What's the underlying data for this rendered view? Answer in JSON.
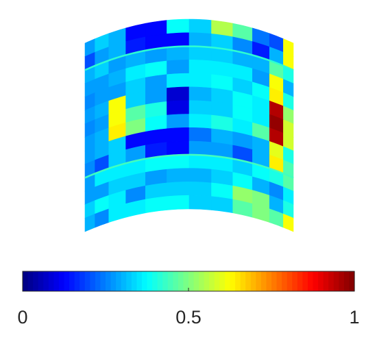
{
  "chart_data": {
    "type": "heatmap",
    "colormap": "jet",
    "value_range": [
      0,
      1
    ],
    "grid": false,
    "legend_placement": "bottom",
    "colorbar": {
      "ticks": [
        0,
        0.5,
        1
      ],
      "tick_labels": [
        "0",
        "0.5",
        "1"
      ]
    },
    "rows": [
      [
        0.28,
        0.33,
        0.3,
        0.13,
        0.13,
        0.38,
        0.33,
        0.55,
        0.46,
        0.24,
        0.2,
        0.62
      ],
      [
        0.2,
        0.28,
        0.3,
        0.15,
        0.13,
        0.13,
        0.3,
        0.33,
        0.26,
        0.15,
        0.3,
        0.62
      ],
      [
        0.3,
        0.33,
        0.28,
        0.3,
        0.28,
        0.3,
        0.33,
        0.33,
        0.3,
        0.3,
        0.46,
        0.4
      ],
      [
        0.28,
        0.28,
        0.3,
        0.36,
        0.38,
        0.28,
        0.36,
        0.36,
        0.36,
        0.28,
        0.62,
        0.3
      ],
      [
        0.26,
        0.28,
        0.28,
        0.33,
        0.28,
        0.36,
        0.36,
        0.38,
        0.33,
        0.38,
        0.64,
        0.4
      ],
      [
        0.28,
        0.3,
        0.62,
        0.33,
        0.28,
        0.08,
        0.3,
        0.33,
        0.38,
        0.36,
        0.95,
        0.52
      ],
      [
        0.26,
        0.28,
        0.62,
        0.46,
        0.4,
        0.1,
        0.33,
        0.33,
        0.38,
        0.36,
        0.98,
        0.58
      ],
      [
        0.28,
        0.3,
        0.64,
        0.5,
        0.38,
        0.28,
        0.36,
        0.4,
        0.36,
        0.46,
        0.95,
        0.58
      ],
      [
        0.28,
        0.3,
        0.33,
        0.13,
        0.13,
        0.13,
        0.24,
        0.3,
        0.28,
        0.3,
        0.6,
        0.4
      ],
      [
        0.26,
        0.2,
        0.33,
        0.28,
        0.15,
        0.13,
        0.28,
        0.28,
        0.2,
        0.3,
        0.64,
        0.45
      ],
      [
        0.28,
        0.36,
        0.36,
        0.36,
        0.38,
        0.38,
        0.36,
        0.36,
        0.33,
        0.38,
        0.4,
        0.46
      ],
      [
        0.28,
        0.28,
        0.33,
        0.33,
        0.28,
        0.3,
        0.3,
        0.33,
        0.38,
        0.3,
        0.26,
        0.36
      ],
      [
        0.33,
        0.38,
        0.36,
        0.26,
        0.33,
        0.33,
        0.33,
        0.38,
        0.52,
        0.5,
        0.3,
        0.4
      ],
      [
        0.3,
        0.26,
        0.36,
        0.36,
        0.38,
        0.38,
        0.33,
        0.33,
        0.46,
        0.5,
        0.46,
        0.62
      ]
    ]
  }
}
